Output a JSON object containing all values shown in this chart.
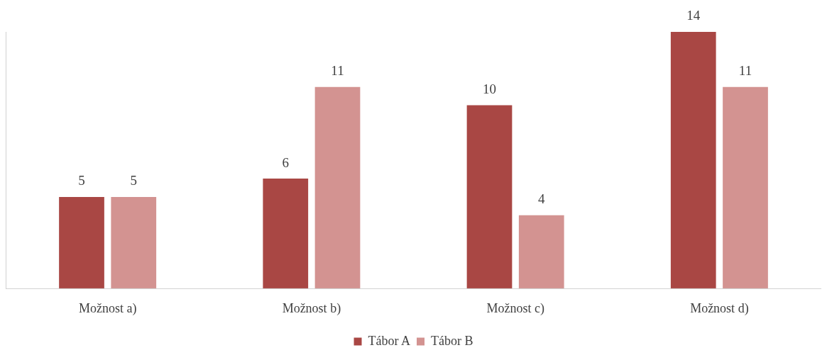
{
  "chart_data": {
    "type": "bar",
    "categories": [
      "Možnost a)",
      "Možnost b)",
      "Možnost c)",
      "Možnost d)"
    ],
    "series": [
      {
        "name": "Tábor A",
        "color": "#a94744",
        "values": [
          5,
          6,
          10,
          14
        ]
      },
      {
        "name": "Tábor B",
        "color": "#d39391",
        "values": [
          5,
          11,
          4,
          11
        ]
      }
    ],
    "data_labels": true,
    "grid": false,
    "legend": "bottom"
  }
}
